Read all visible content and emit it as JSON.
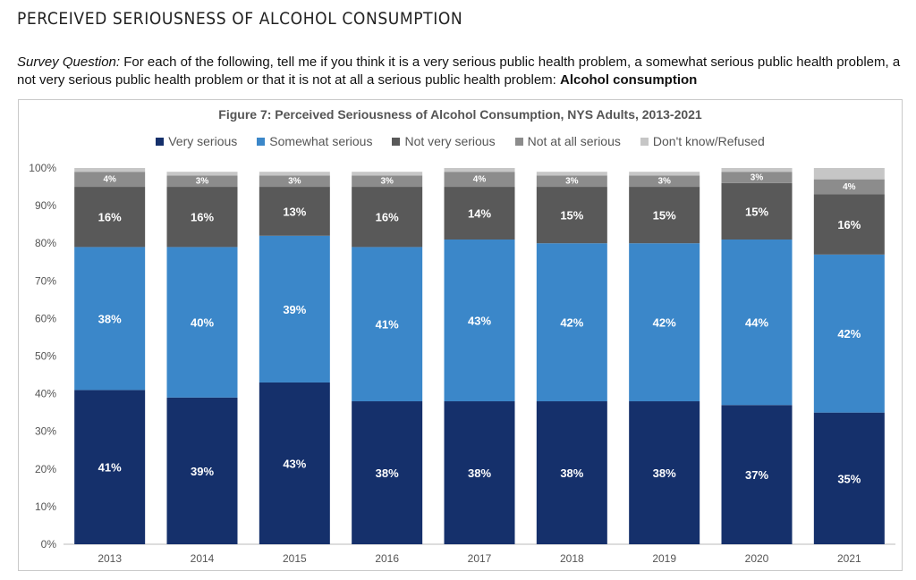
{
  "page": {
    "heading": "PERCEIVED SERIOUSNESS OF ALCOHOL CONSUMPTION",
    "question_label": "Survey Question:",
    "question_text": " For each of the following, tell me if you think it is a very serious public health problem, a somewhat serious public health problem, a not very serious public health problem or that it is not at all a serious public health problem: ",
    "question_bold": "Alcohol consumption"
  },
  "chart_data": {
    "type": "bar",
    "stacked": true,
    "title": "Figure 7: Perceived Seriousness of Alcohol Consumption, NYS Adults, 2013-2021",
    "categories": [
      "2013",
      "2014",
      "2015",
      "2016",
      "2017",
      "2018",
      "2019",
      "2020",
      "2021"
    ],
    "ylim": [
      0,
      100
    ],
    "yticks": [
      "0%",
      "10%",
      "20%",
      "30%",
      "40%",
      "50%",
      "60%",
      "70%",
      "80%",
      "90%",
      "100%"
    ],
    "legend_position": "top",
    "grid": false,
    "series": [
      {
        "name": "Very serious",
        "color": "#15306b",
        "values": [
          41,
          39,
          43,
          38,
          38,
          38,
          38,
          37,
          35
        ],
        "labels": [
          "41%",
          "39%",
          "43%",
          "38%",
          "38%",
          "38%",
          "38%",
          "37%",
          "35%"
        ]
      },
      {
        "name": "Somewhat serious",
        "color": "#3b87c9",
        "values": [
          38,
          40,
          39,
          41,
          43,
          42,
          42,
          44,
          42
        ],
        "labels": [
          "38%",
          "40%",
          "39%",
          "41%",
          "43%",
          "42%",
          "42%",
          "44%",
          "42%"
        ]
      },
      {
        "name": "Not very serious",
        "color": "#595959",
        "values": [
          16,
          16,
          13,
          16,
          14,
          15,
          15,
          15,
          16
        ],
        "labels": [
          "16%",
          "16%",
          "13%",
          "16%",
          "14%",
          "15%",
          "15%",
          "15%",
          "16%"
        ]
      },
      {
        "name": "Not at all serious",
        "color": "#8c8c8c",
        "values": [
          4,
          3,
          3,
          3,
          4,
          3,
          3,
          3,
          4
        ],
        "labels": [
          "4%",
          "3%",
          "3%",
          "3%",
          "4%",
          "3%",
          "3%",
          "3%",
          "4%"
        ]
      },
      {
        "name": "Don't know/Refused",
        "color": "#c6c6c6",
        "values": [
          1,
          1,
          1,
          1,
          1,
          1,
          1,
          1,
          3
        ],
        "labels": []
      }
    ]
  }
}
